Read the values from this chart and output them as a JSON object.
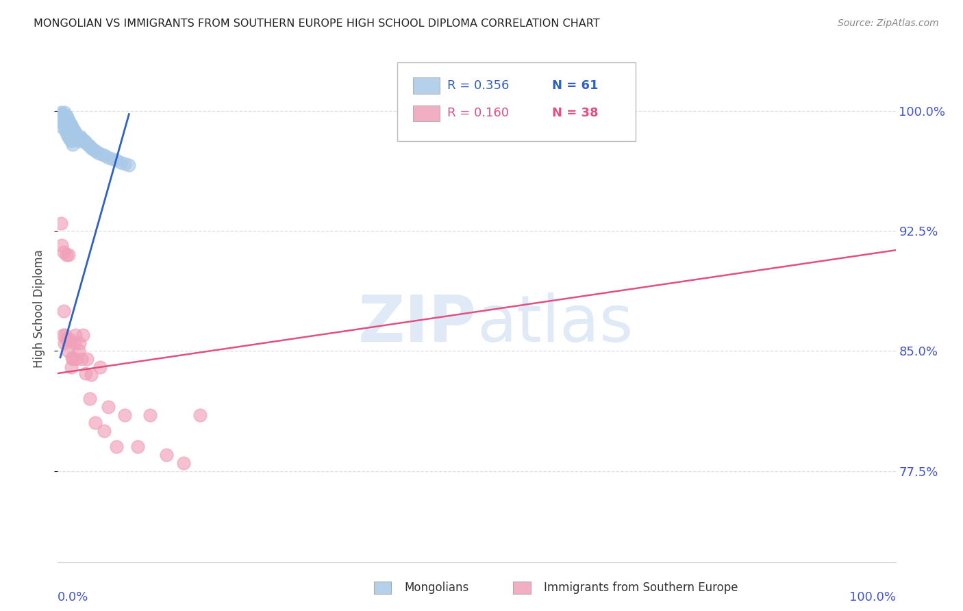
{
  "title": "MONGOLIAN VS IMMIGRANTS FROM SOUTHERN EUROPE HIGH SCHOOL DIPLOMA CORRELATION CHART",
  "source": "Source: ZipAtlas.com",
  "ylabel": "High School Diploma",
  "ytick_vals": [
    0.775,
    0.85,
    0.925,
    1.0
  ],
  "ytick_labels": [
    "77.5%",
    "85.0%",
    "92.5%",
    "100.0%"
  ],
  "legend_r1": "R = 0.356",
  "legend_n1": "N = 61",
  "legend_r2": "R = 0.160",
  "legend_n2": "N = 38",
  "legend_label1": "Mongolians",
  "legend_label2": "Immigrants from Southern Europe",
  "blue_scatter_color": "#a8c8e8",
  "blue_line_color": "#3060c0",
  "pink_scatter_color": "#f0a0b8",
  "pink_line_color": "#e05080",
  "axis_color": "#4455cc",
  "watermark_color": "#c8d8f0",
  "mongolian_x": [
    0.003,
    0.004,
    0.004,
    0.005,
    0.005,
    0.005,
    0.006,
    0.006,
    0.007,
    0.007,
    0.008,
    0.008,
    0.008,
    0.009,
    0.009,
    0.01,
    0.01,
    0.01,
    0.011,
    0.011,
    0.011,
    0.012,
    0.012,
    0.013,
    0.013,
    0.014,
    0.014,
    0.015,
    0.015,
    0.016,
    0.016,
    0.017,
    0.018,
    0.018,
    0.019,
    0.02,
    0.021,
    0.022,
    0.023,
    0.024,
    0.025,
    0.026,
    0.027,
    0.028,
    0.03,
    0.032,
    0.034,
    0.036,
    0.038,
    0.04,
    0.042,
    0.045,
    0.048,
    0.052,
    0.056,
    0.06,
    0.065,
    0.07,
    0.075,
    0.08,
    0.085
  ],
  "mongolian_y": [
    0.998,
    0.999,
    0.996,
    0.997,
    0.993,
    0.99,
    0.998,
    0.994,
    0.997,
    0.992,
    0.999,
    0.995,
    0.991,
    0.996,
    0.988,
    0.997,
    0.993,
    0.987,
    0.996,
    0.991,
    0.985,
    0.995,
    0.988,
    0.994,
    0.984,
    0.993,
    0.983,
    0.992,
    0.982,
    0.991,
    0.981,
    0.99,
    0.989,
    0.979,
    0.988,
    0.987,
    0.986,
    0.985,
    0.984,
    0.983,
    0.982,
    0.981,
    0.984,
    0.983,
    0.982,
    0.981,
    0.98,
    0.979,
    0.978,
    0.977,
    0.976,
    0.975,
    0.974,
    0.973,
    0.972,
    0.971,
    0.97,
    0.969,
    0.968,
    0.967,
    0.966
  ],
  "southern_x": [
    0.004,
    0.005,
    0.006,
    0.007,
    0.007,
    0.008,
    0.009,
    0.01,
    0.01,
    0.011,
    0.012,
    0.013,
    0.015,
    0.016,
    0.017,
    0.018,
    0.02,
    0.021,
    0.022,
    0.025,
    0.026,
    0.028,
    0.03,
    0.033,
    0.035,
    0.038,
    0.04,
    0.045,
    0.05,
    0.055,
    0.06,
    0.07,
    0.08,
    0.095,
    0.11,
    0.13,
    0.15,
    0.17
  ],
  "southern_y": [
    0.93,
    0.916,
    0.86,
    0.912,
    0.875,
    0.855,
    0.86,
    0.91,
    0.857,
    0.858,
    0.85,
    0.91,
    0.857,
    0.84,
    0.846,
    0.845,
    0.855,
    0.86,
    0.845,
    0.85,
    0.855,
    0.845,
    0.86,
    0.836,
    0.845,
    0.82,
    0.835,
    0.805,
    0.84,
    0.8,
    0.815,
    0.79,
    0.81,
    0.79,
    0.81,
    0.785,
    0.78,
    0.81
  ],
  "blue_trend_x": [
    0.003,
    0.085
  ],
  "blue_trend_y": [
    0.846,
    0.998
  ],
  "pink_trend_x": [
    0.0,
    1.0
  ],
  "pink_trend_y": [
    0.836,
    0.913
  ],
  "xmin": 0.0,
  "xmax": 1.0,
  "ymin": 0.718,
  "ymax": 1.035
}
